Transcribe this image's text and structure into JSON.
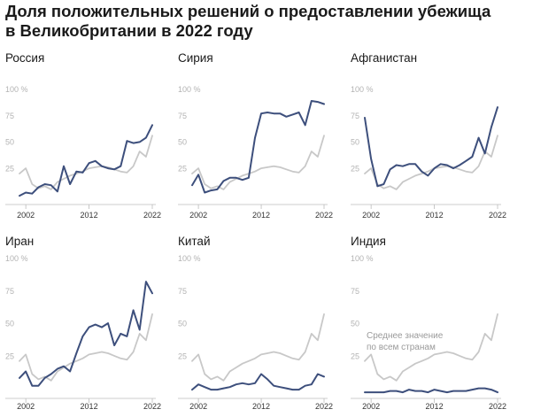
{
  "title": {
    "line1": "Доля положительных решений о предоставлении убежища",
    "line2": "в Великобритании в 2022 году"
  },
  "colors": {
    "country": "#3d4f7c",
    "average": "#c8c8c8",
    "axis": "#bbbbbb",
    "tick_text": "#b3b3b3"
  },
  "chart_data": [
    {
      "type": "line",
      "title": "Россия",
      "x": [
        2001,
        2002,
        2003,
        2004,
        2005,
        2006,
        2007,
        2008,
        2009,
        2010,
        2011,
        2012,
        2013,
        2014,
        2015,
        2016,
        2017,
        2018,
        2019,
        2020,
        2021,
        2022
      ],
      "series": [
        {
          "name": "Россия",
          "values": [
            5,
            8,
            7,
            13,
            16,
            15,
            9,
            33,
            16,
            28,
            27,
            36,
            38,
            33,
            31,
            30,
            33,
            57,
            55,
            56,
            60,
            72
          ]
        },
        {
          "name": "Среднее значение по всем странам",
          "values": [
            26,
            31,
            16,
            12,
            14,
            11,
            18,
            21,
            24,
            26,
            28,
            31,
            32,
            33,
            32,
            30,
            28,
            27,
            33,
            47,
            42,
            62
          ]
        }
      ],
      "ylim": [
        0,
        100
      ],
      "yticks": [
        25,
        50,
        75,
        100
      ],
      "ytick_labels": [
        "25",
        "50",
        "75",
        "100 %"
      ],
      "xticks": [
        2002,
        2012,
        2022
      ],
      "xtick_labels": [
        "2002",
        "2012",
        "2022"
      ]
    },
    {
      "type": "line",
      "title": "Сирия",
      "x": [
        2001,
        2002,
        2003,
        2004,
        2005,
        2006,
        2007,
        2008,
        2009,
        2010,
        2011,
        2012,
        2013,
        2014,
        2015,
        2016,
        2017,
        2018,
        2019,
        2020,
        2021,
        2022
      ],
      "series": [
        {
          "name": "Сирия",
          "values": [
            15,
            25,
            8,
            10,
            11,
            19,
            22,
            22,
            20,
            22,
            60,
            83,
            84,
            83,
            83,
            80,
            82,
            84,
            72,
            95,
            94,
            92
          ]
        },
        {
          "name": "Среднее значение по всем странам",
          "values": [
            26,
            31,
            16,
            12,
            14,
            11,
            18,
            21,
            24,
            26,
            28,
            31,
            32,
            33,
            32,
            30,
            28,
            27,
            33,
            47,
            42,
            62
          ]
        }
      ],
      "ylim": [
        0,
        100
      ],
      "yticks": [
        25,
        50,
        75,
        100
      ],
      "ytick_labels": [
        "25",
        "50",
        "75",
        "100 %"
      ],
      "xticks": [
        2002,
        2012,
        2022
      ],
      "xtick_labels": [
        "2002",
        "2012",
        "2022"
      ]
    },
    {
      "type": "line",
      "title": "Афганистан",
      "x": [
        2001,
        2002,
        2003,
        2004,
        2005,
        2006,
        2007,
        2008,
        2009,
        2010,
        2011,
        2012,
        2013,
        2014,
        2015,
        2016,
        2017,
        2018,
        2019,
        2020,
        2021,
        2022
      ],
      "series": [
        {
          "name": "Афганистан",
          "values": [
            79,
            40,
            14,
            16,
            30,
            34,
            33,
            35,
            35,
            28,
            24,
            31,
            35,
            34,
            31,
            34,
            38,
            42,
            60,
            45,
            70,
            89
          ]
        },
        {
          "name": "Среднее значение по всем странам",
          "values": [
            26,
            31,
            16,
            12,
            14,
            11,
            18,
            21,
            24,
            26,
            28,
            31,
            32,
            33,
            32,
            30,
            28,
            27,
            33,
            47,
            42,
            62
          ]
        }
      ],
      "ylim": [
        0,
        100
      ],
      "yticks": [
        25,
        50,
        75,
        100
      ],
      "ytick_labels": [
        "25",
        "50",
        "75",
        "100 %"
      ],
      "xticks": [
        2002,
        2012,
        2022
      ],
      "xtick_labels": [
        "2002",
        "2012",
        "2022"
      ]
    },
    {
      "type": "line",
      "title": "Иран",
      "x": [
        2001,
        2002,
        2003,
        2004,
        2005,
        2006,
        2007,
        2008,
        2009,
        2010,
        2011,
        2012,
        2013,
        2014,
        2015,
        2016,
        2017,
        2018,
        2019,
        2020,
        2021,
        2022
      ],
      "series": [
        {
          "name": "Иран",
          "values": [
            13,
            18,
            7,
            7,
            13,
            16,
            20,
            22,
            18,
            32,
            45,
            52,
            54,
            52,
            55,
            38,
            47,
            45,
            65,
            50,
            87,
            78
          ]
        },
        {
          "name": "Среднее значение по всем странам",
          "values": [
            26,
            31,
            16,
            12,
            14,
            11,
            18,
            21,
            24,
            26,
            28,
            31,
            32,
            33,
            32,
            30,
            28,
            27,
            33,
            47,
            42,
            62
          ]
        }
      ],
      "ylim": [
        0,
        100
      ],
      "yticks": [
        25,
        50,
        75,
        100
      ],
      "ytick_labels": [
        "25",
        "50",
        "75",
        "100 %"
      ],
      "xticks": [
        2002,
        2012,
        2022
      ],
      "xtick_labels": [
        "2002",
        "2012",
        "2022"
      ]
    },
    {
      "type": "line",
      "title": "Китай",
      "x": [
        2001,
        2002,
        2003,
        2004,
        2005,
        2006,
        2007,
        2008,
        2009,
        2010,
        2011,
        2012,
        2013,
        2014,
        2015,
        2016,
        2017,
        2018,
        2019,
        2020,
        2021,
        2022
      ],
      "series": [
        {
          "name": "Китай",
          "values": [
            4,
            8,
            6,
            4,
            4,
            5,
            6,
            8,
            9,
            8,
            9,
            16,
            12,
            7,
            6,
            5,
            4,
            4,
            7,
            8,
            16,
            14
          ]
        },
        {
          "name": "Среднее значение по всем странам",
          "values": [
            26,
            31,
            16,
            12,
            14,
            11,
            18,
            21,
            24,
            26,
            28,
            31,
            32,
            33,
            32,
            30,
            28,
            27,
            33,
            47,
            42,
            62
          ]
        }
      ],
      "ylim": [
        0,
        100
      ],
      "yticks": [
        25,
        50,
        75,
        100
      ],
      "ytick_labels": [
        "25",
        "50",
        "75",
        "100 %"
      ],
      "xticks": [
        2002,
        2012,
        2022
      ],
      "xtick_labels": [
        "2002",
        "2012",
        "2022"
      ]
    },
    {
      "type": "line",
      "title": "Индия",
      "x": [
        2001,
        2002,
        2003,
        2004,
        2005,
        2006,
        2007,
        2008,
        2009,
        2010,
        2011,
        2012,
        2013,
        2014,
        2015,
        2016,
        2017,
        2018,
        2019,
        2020,
        2021,
        2022
      ],
      "series": [
        {
          "name": "Индия",
          "values": [
            2,
            2,
            2,
            2,
            3,
            3,
            2,
            4,
            3,
            3,
            2,
            4,
            3,
            2,
            3,
            3,
            3,
            4,
            5,
            5,
            4,
            2
          ]
        },
        {
          "name": "Среднее значение по всем странам",
          "values": [
            26,
            31,
            16,
            12,
            14,
            11,
            18,
            21,
            24,
            26,
            28,
            31,
            32,
            33,
            32,
            30,
            28,
            27,
            33,
            47,
            42,
            62
          ]
        }
      ],
      "ylim": [
        0,
        100
      ],
      "yticks": [
        25,
        50,
        75,
        100
      ],
      "ytick_labels": [
        "25",
        "50",
        "75",
        "100 %"
      ],
      "xticks": [
        2002,
        2012,
        2022
      ],
      "xtick_labels": [
        "2002",
        "2012",
        "2022"
      ],
      "annotation": {
        "line1": "Среднее значение",
        "line2": "по всем странам"
      }
    }
  ]
}
